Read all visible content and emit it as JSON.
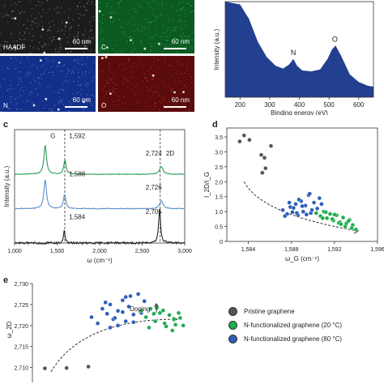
{
  "panel_a": {
    "tiles": [
      {
        "label": "HAADF",
        "scalebar": "60 nm",
        "bg": "#1c1c1c",
        "speck": "#9a9a9a"
      },
      {
        "label": "C",
        "scalebar": "60 nm",
        "bg": "#0c5a22",
        "speck": "#34b45a"
      },
      {
        "label": "N",
        "scalebar": "60 nm",
        "bg": "#12308a",
        "speck": "#6f8ad6"
      },
      {
        "label": "O",
        "scalebar": "60 nm",
        "bg": "#5a0b0b",
        "speck": "#c83434"
      }
    ]
  },
  "panels": {
    "c": "c",
    "d": "d",
    "e": "e"
  },
  "legend": {
    "items": [
      {
        "label": "Pristine graphene",
        "color": "#555555"
      },
      {
        "label": "N-functionalized graphene (20 °C)",
        "color": "#1fae4e"
      },
      {
        "label": "N-functionalized graphene (80 °C)",
        "color": "#2f5fb8"
      }
    ]
  },
  "chart_data": [
    {
      "id": "b",
      "type": "area",
      "xlabel": "Binding energy (eV)",
      "ylabel": "Intensity (a.u.)",
      "xlim": [
        150,
        650
      ],
      "xticks": [
        "200",
        "300",
        "400",
        "500",
        "600"
      ],
      "color": "#233f8f",
      "x": [
        150,
        200,
        230,
        260,
        290,
        320,
        345,
        365,
        380,
        392,
        410,
        440,
        470,
        495,
        510,
        522,
        540,
        570,
        600,
        630,
        650
      ],
      "y": [
        1.0,
        0.97,
        0.82,
        0.58,
        0.42,
        0.33,
        0.3,
        0.34,
        0.4,
        0.33,
        0.28,
        0.27,
        0.29,
        0.4,
        0.5,
        0.54,
        0.44,
        0.24,
        0.16,
        0.12,
        0.11
      ],
      "annotations": [
        {
          "text": "N",
          "x": 380
        },
        {
          "text": "O",
          "x": 520
        }
      ]
    },
    {
      "id": "c",
      "type": "line",
      "xlabel": "ω (cm⁻¹)",
      "ylabel": "Intensity (a.u.)",
      "xlim": [
        1000,
        3000
      ],
      "xticks": [
        "1,000",
        "1,500",
        "2,000",
        "2,500",
        "3,000"
      ],
      "vlines": [
        1590,
        2712
      ],
      "series": [
        {
          "color": "#2a9d5c",
          "offset": 2.0,
          "g": 1592,
          "d2": 2724
        },
        {
          "color": "#5b8fc8",
          "offset": 1.0,
          "g": 1588,
          "d2": 2726
        },
        {
          "color": "#222222",
          "offset": 0.0,
          "g": 1584,
          "d2": 2705
        }
      ],
      "annotations": [
        {
          "text": "G",
          "x": 1420,
          "y": 3.05
        },
        {
          "text": "1,592",
          "x": 1640,
          "y": 3.05
        },
        {
          "text": "2,724",
          "x": 2540,
          "y": 2.55
        },
        {
          "text": "2D",
          "x": 2780,
          "y": 2.55
        },
        {
          "text": "1,588",
          "x": 1640,
          "y": 1.95
        },
        {
          "text": "2,726",
          "x": 2540,
          "y": 1.55
        },
        {
          "text": "1,584",
          "x": 1640,
          "y": 0.7
        },
        {
          "text": "2,705",
          "x": 2540,
          "y": 0.85
        }
      ]
    },
    {
      "id": "d",
      "type": "scatter",
      "xlabel": "ω_G (cm⁻¹)",
      "ylabel": "I_2D/I_G",
      "xlim": [
        1582,
        1596
      ],
      "ylim": [
        0,
        3.8
      ],
      "xticks": [
        "1,584",
        "1,588",
        "1,592",
        "1,596"
      ],
      "yticks": [
        "0",
        "0.5",
        "1.0",
        "1.5",
        "2.0",
        "2.5",
        "3.0",
        "3.5"
      ],
      "series": [
        {
          "name": "Pristine graphene",
          "color": "#555555",
          "x": [
            1583.2,
            1583.6,
            1584.1,
            1585.2,
            1585.5,
            1585.3,
            1586.1,
            1585.6
          ],
          "y": [
            3.35,
            3.55,
            3.4,
            2.9,
            2.8,
            2.3,
            3.2,
            2.45
          ]
        },
        {
          "name": "N-functionalized graphene (80 °C)",
          "color": "#2f5fb8",
          "x": [
            1587.2,
            1587.6,
            1587.9,
            1588.1,
            1588.4,
            1588.6,
            1588.9,
            1589.1,
            1589.3,
            1589.6,
            1589.8,
            1590.1,
            1590.4,
            1590.6,
            1587.4,
            1588.2,
            1588.7,
            1589.4,
            1589.9,
            1590.8,
            1587.8,
            1588.5,
            1589.0,
            1589.7
          ],
          "y": [
            1.05,
            0.92,
            1.15,
            0.98,
            1.25,
            0.88,
            1.35,
            1.0,
            1.2,
            1.55,
            0.95,
            1.3,
            1.1,
            1.45,
            0.85,
            1.12,
            1.4,
            0.9,
            1.05,
            1.25,
            1.3,
            0.95,
            1.18,
            1.6
          ]
        },
        {
          "name": "N-functionalized graphene (20 °C)",
          "color": "#1fae4e",
          "x": [
            1590.3,
            1590.7,
            1591.0,
            1591.3,
            1591.6,
            1591.9,
            1592.2,
            1592.5,
            1592.8,
            1593.1,
            1593.4,
            1593.7,
            1591.2,
            1591.8,
            1592.4,
            1593.0,
            1593.6,
            1594.0,
            1592.0,
            1592.6,
            1590.9,
            1593.3
          ],
          "y": [
            0.95,
            0.85,
            1.0,
            0.78,
            0.92,
            0.7,
            0.88,
            0.65,
            0.8,
            0.6,
            0.72,
            0.55,
            0.98,
            0.75,
            0.62,
            0.5,
            0.45,
            0.4,
            0.9,
            0.58,
            0.78,
            0.68
          ]
        }
      ]
    },
    {
      "id": "e",
      "type": "scatter",
      "xlabel": "",
      "ylabel": "ω_2D",
      "ylim": [
        2708,
        2730
      ],
      "yticks": [
        "2,710",
        "2,715",
        "2,720",
        "2,725",
        "2,730"
      ],
      "annotations": [
        {
          "text": "Doping"
        }
      ],
      "series": [
        {
          "name": "Pristine graphene",
          "color": "#555555",
          "x": [
            0.08,
            0.22,
            0.36
          ],
          "y": [
            2709.8,
            2709.9,
            2710.2
          ]
        },
        {
          "name": "N-functionalized graphene (80 °C)",
          "color": "#2f5fb8",
          "x": [
            0.38,
            0.42,
            0.45,
            0.48,
            0.5,
            0.52,
            0.55,
            0.58,
            0.6,
            0.62,
            0.65,
            0.68,
            0.7,
            0.72,
            0.5,
            0.55,
            0.6,
            0.65,
            0.47,
            0.58,
            0.63,
            0.53
          ],
          "y": [
            2722,
            2720.5,
            2724,
            2722.8,
            2725,
            2721.5,
            2723.5,
            2726,
            2721,
            2724.5,
            2722.6,
            2727.5,
            2723,
            2725.8,
            2719.5,
            2720,
            2726.8,
            2720.8,
            2725.5,
            2723.2,
            2727,
            2721.8
          ]
        },
        {
          "name": "N-functionalized graphene (20 °C)",
          "color": "#1fae4e",
          "x": [
            0.7,
            0.73,
            0.76,
            0.79,
            0.82,
            0.85,
            0.88,
            0.91,
            0.94,
            0.97,
            0.75,
            0.8,
            0.86,
            0.9,
            0.95,
            0.78,
            0.84,
            0.92
          ],
          "y": [
            2723.5,
            2722,
            2724,
            2721,
            2723,
            2720.5,
            2722.5,
            2721.5,
            2723,
            2720,
            2719.5,
            2724.2,
            2719.8,
            2718.8,
            2721.8,
            2722.8,
            2723.6,
            2720.2
          ]
        }
      ]
    }
  ]
}
